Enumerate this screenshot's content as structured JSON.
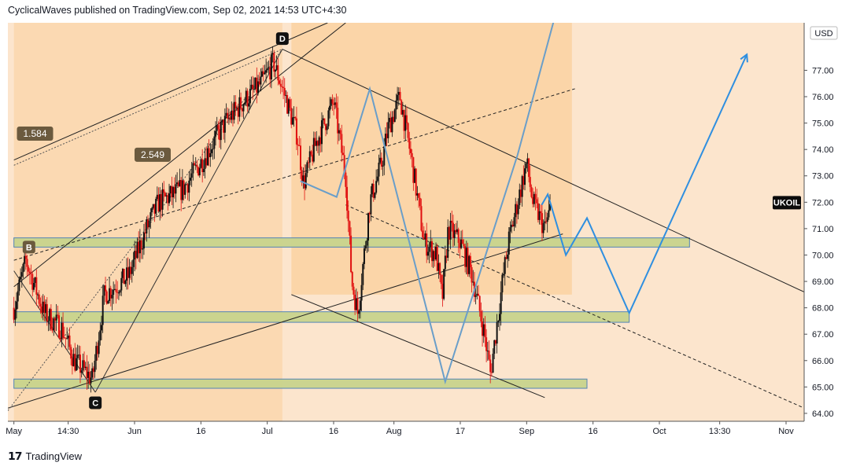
{
  "header": {
    "text": "CyclicalWaves published on TradingView.com, Sep 02, 2021 14:53 UTC+4:30"
  },
  "footer": {
    "brand": "TradingView"
  },
  "chart_data": {
    "type": "candlestick",
    "currency_label": "USD",
    "symbol_label": "UKOIL",
    "symbol_price": 72.0,
    "ylim": [
      63.7,
      78.8
    ],
    "y_ticks": [
      {
        "value": 77.0,
        "label": "77.00"
      },
      {
        "value": 76.0,
        "label": "76.00"
      },
      {
        "value": 75.0,
        "label": "75.00"
      },
      {
        "value": 74.0,
        "label": "74.00"
      },
      {
        "value": 73.0,
        "label": "73.00"
      },
      {
        "value": 72.0,
        "label": "72.00"
      },
      {
        "value": 71.0,
        "label": "71.00"
      },
      {
        "value": 70.0,
        "label": "70.00"
      },
      {
        "value": 69.0,
        "label": "69.00"
      },
      {
        "value": 68.0,
        "label": "68.00"
      },
      {
        "value": 67.0,
        "label": "67.00"
      },
      {
        "value": 66.0,
        "label": "66.00"
      },
      {
        "value": 65.0,
        "label": "65.00"
      },
      {
        "value": 64.0,
        "label": "64.00"
      }
    ],
    "x_ticks": [
      {
        "label": "May",
        "t": 0
      },
      {
        "label": "14:30",
        "t": 9
      },
      {
        "label": "Jun",
        "t": 20
      },
      {
        "label": "16",
        "t": 31
      },
      {
        "label": "Jul",
        "t": 42
      },
      {
        "label": "16",
        "t": 53
      },
      {
        "label": "Aug",
        "t": 63
      },
      {
        "label": "17",
        "t": 74
      },
      {
        "label": "Sep",
        "t": 85
      },
      {
        "label": "16",
        "t": 96
      },
      {
        "label": "Oct",
        "t": 107
      },
      {
        "label": "13:30",
        "t": 117
      },
      {
        "label": "Nov",
        "t": 128
      }
    ],
    "candle_trend": [
      [
        0,
        68.0
      ],
      [
        2,
        69.8
      ],
      [
        5,
        67.8
      ],
      [
        8,
        67.2
      ],
      [
        10,
        66.0
      ],
      [
        13,
        65.3
      ],
      [
        15,
        68.5
      ],
      [
        19,
        69.2
      ],
      [
        22,
        71.0
      ],
      [
        24,
        72.0
      ],
      [
        28,
        72.5
      ],
      [
        31,
        73.5
      ],
      [
        35,
        75.0
      ],
      [
        38,
        75.8
      ],
      [
        41,
        76.5
      ],
      [
        43,
        77.3
      ],
      [
        45,
        76.0
      ],
      [
        47,
        74.5
      ],
      [
        48,
        72.7
      ],
      [
        50,
        74.2
      ],
      [
        53,
        75.8
      ],
      [
        55,
        73.0
      ],
      [
        56,
        69.0
      ],
      [
        57,
        67.8
      ],
      [
        59,
        72.0
      ],
      [
        61,
        73.5
      ],
      [
        62,
        74.8
      ],
      [
        64,
        76.0
      ],
      [
        66,
        73.5
      ],
      [
        68,
        70.5
      ],
      [
        70,
        70.0
      ],
      [
        71,
        68.3
      ],
      [
        72,
        71.0
      ],
      [
        74,
        70.5
      ],
      [
        76,
        69.2
      ],
      [
        78,
        67.0
      ],
      [
        79,
        65.5
      ],
      [
        81,
        69.0
      ],
      [
        82,
        70.5
      ],
      [
        84,
        72.5
      ],
      [
        85,
        73.5
      ],
      [
        86,
        72.0
      ],
      [
        88,
        71.0
      ],
      [
        89,
        71.8
      ]
    ],
    "swing_labels": [
      {
        "text": "D",
        "t": 44.5,
        "price": 78.2
      },
      {
        "text": "C",
        "t": 13.5,
        "price": 64.4
      },
      {
        "text": "B",
        "t": 2.5,
        "price": 70.3
      }
    ],
    "fib_labels": [
      {
        "text": "1.584",
        "t": 3.5,
        "price": 74.6
      },
      {
        "text": "2.549",
        "t": 23.0,
        "price": 73.8
      }
    ],
    "support_zones": [
      {
        "t1": 0,
        "t2": 112,
        "low": 70.3,
        "high": 70.65
      },
      {
        "t1": 0,
        "t2": 102,
        "low": 67.45,
        "high": 67.85
      },
      {
        "t1": 0,
        "t2": 95,
        "low": 64.95,
        "high": 65.3
      }
    ],
    "projection_blue": [
      [
        87.5,
        71.9
      ],
      [
        88.5,
        72.3
      ],
      [
        91.5,
        70.0
      ],
      [
        95,
        71.4
      ],
      [
        102,
        67.8
      ],
      [
        121.5,
        77.6
      ]
    ],
    "past_path_grey": [
      [
        47.5,
        72.8
      ],
      [
        53.5,
        72.2
      ],
      [
        59,
        76.3
      ],
      [
        71.5,
        65.2
      ],
      [
        83.5,
        73.8
      ],
      [
        90,
        79.3
      ]
    ],
    "channel_upper": [
      [
        44.5,
        77.8
      ],
      [
        131,
        68.6
      ]
    ],
    "channel_lower": [
      [
        46,
        68.5
      ],
      [
        88,
        64.6
      ]
    ],
    "channel_mid": [
      [
        55,
        71.9
      ],
      [
        131,
        64.2
      ]
    ],
    "bc_line": [
      [
        -1,
        64.2
      ],
      [
        91,
        70.8
      ]
    ],
    "bc_parallel": [
      [
        0,
        68.8
      ],
      [
        55,
        78.8
      ]
    ],
    "median_dashed": [
      [
        0,
        69.8
      ],
      [
        93,
        76.3
      ]
    ],
    "bd_upper_dashed": [
      [
        0,
        73.4
      ],
      [
        44.5,
        77.8
      ]
    ],
    "fib_upper": [
      [
        0,
        73.6
      ],
      [
        52,
        78.8
      ]
    ]
  }
}
